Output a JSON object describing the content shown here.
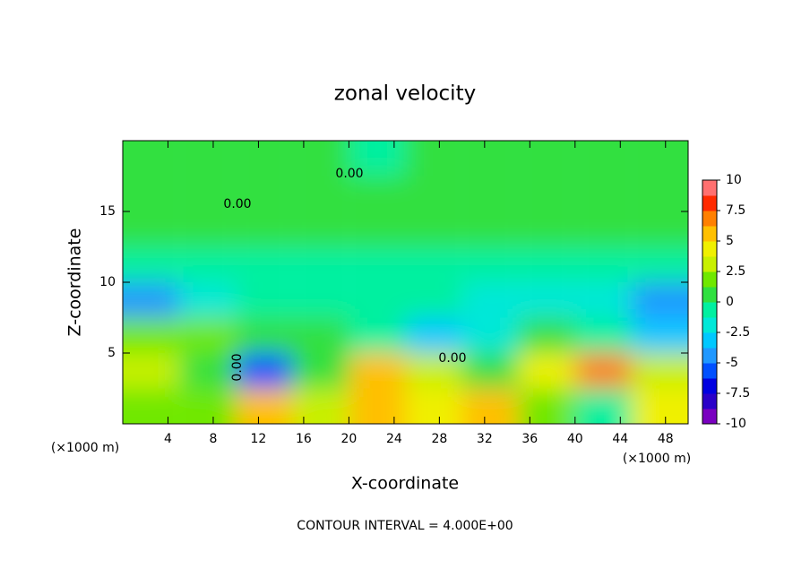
{
  "chart_data": {
    "type": "heatmap",
    "title": "zonal velocity",
    "x_label": "X-coordinate",
    "y_label": "Z-coordinate",
    "x_unit": "(×1000 m)",
    "y_unit": "(×1000 m)",
    "footnote": "CONTOUR INTERVAL = 4.000E+00",
    "contour_labels": [
      "0.00",
      "0.00",
      "0.00",
      "0.00"
    ],
    "xlim": [
      0,
      50
    ],
    "ylim": [
      0,
      20
    ],
    "xticks": [
      4,
      8,
      12,
      16,
      20,
      24,
      28,
      32,
      36,
      40,
      44,
      48
    ],
    "yticks": [
      5,
      10,
      15
    ],
    "x": [
      2.5,
      7.5,
      12.5,
      17.5,
      22.5,
      27.5,
      32.5,
      37.5,
      42.5,
      47.5
    ],
    "y": [
      1.25,
      3.75,
      6.25,
      8.75,
      11.25,
      13.75,
      16.25,
      18.75
    ],
    "z": [
      [
        1.5,
        2,
        6,
        3,
        6,
        4,
        6,
        2,
        -1,
        4
      ],
      [
        3,
        1,
        -6,
        1,
        6,
        3,
        0,
        4,
        7,
        3
      ],
      [
        2,
        2,
        0,
        0,
        -1,
        -3,
        -2,
        0,
        -1,
        -3
      ],
      [
        -4,
        -2,
        -1,
        -1,
        -1,
        -1,
        -2,
        -2,
        -2,
        -4
      ],
      [
        -1,
        -1,
        -1,
        -0.5,
        -1,
        -1,
        -1,
        -1,
        -1,
        -1
      ],
      [
        0.5,
        0.5,
        0.5,
        0.5,
        0,
        0,
        0,
        0,
        0,
        0
      ],
      [
        0.5,
        0.5,
        0.5,
        0,
        0,
        0,
        0,
        0,
        0.5,
        0.5
      ],
      [
        1,
        0.5,
        0,
        0,
        -1,
        0,
        0,
        0,
        0,
        0.5
      ]
    ],
    "clim": [
      -10,
      10
    ],
    "cticks": [
      10,
      7.5,
      5,
      2.5,
      0,
      -2.5,
      -5,
      -7.5,
      -10
    ],
    "colors": [
      "#7a00c0",
      "#2a00c8",
      "#0000e0",
      "#0050ff",
      "#2098ff",
      "#00c8ff",
      "#00e8d8",
      "#00f0a0",
      "#30e040",
      "#70e800",
      "#c8f000",
      "#f0f000",
      "#ffc000",
      "#ff8000",
      "#ff2a00",
      "#ff7070"
    ]
  }
}
